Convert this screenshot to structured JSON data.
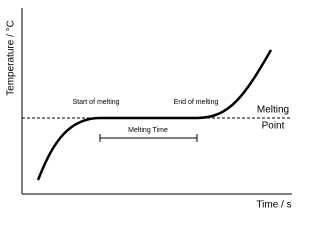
{
  "axes": {
    "y_label": "Temperature / °C",
    "x_label": "Time / s"
  },
  "annotations": {
    "start": "Start of melting",
    "end": "End of melting",
    "melting_point": [
      "Melting",
      "Point"
    ],
    "melting_time": "Melting Time"
  }
}
